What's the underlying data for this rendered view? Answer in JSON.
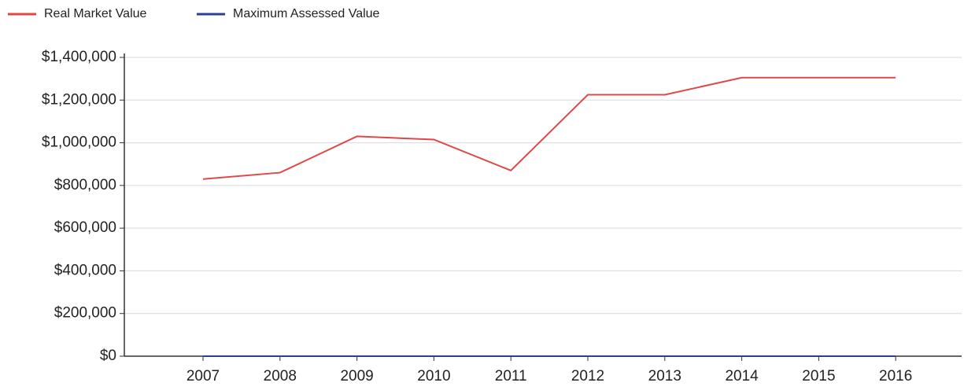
{
  "chart_data": {
    "type": "line",
    "categories": [
      "2007",
      "2008",
      "2009",
      "2010",
      "2011",
      "2012",
      "2013",
      "2014",
      "2015",
      "2016"
    ],
    "series": [
      {
        "name": "Real Market Value",
        "color": "#e04848",
        "values": [
          830000,
          860000,
          1030000,
          1015000,
          870000,
          1225000,
          1225000,
          1305000,
          1305000,
          1305000
        ]
      },
      {
        "name": "Maximum Assessed Value",
        "color": "#2b3f9a",
        "values": [
          0,
          0,
          0,
          0,
          0,
          0,
          0,
          0,
          0,
          0
        ]
      }
    ],
    "ylim": [
      0,
      1400000
    ],
    "yticks": [
      {
        "value": 0,
        "label": "$0"
      },
      {
        "value": 200000,
        "label": "$200,000"
      },
      {
        "value": 400000,
        "label": "$400,000"
      },
      {
        "value": 600000,
        "label": "$600,000"
      },
      {
        "value": 800000,
        "label": "$800,000"
      },
      {
        "value": 1000000,
        "label": "$1,000,000"
      },
      {
        "value": 1200000,
        "label": "$1,200,000"
      },
      {
        "value": 1400000,
        "label": "$1,400,000"
      }
    ],
    "grid": true,
    "legend": "top-left"
  }
}
